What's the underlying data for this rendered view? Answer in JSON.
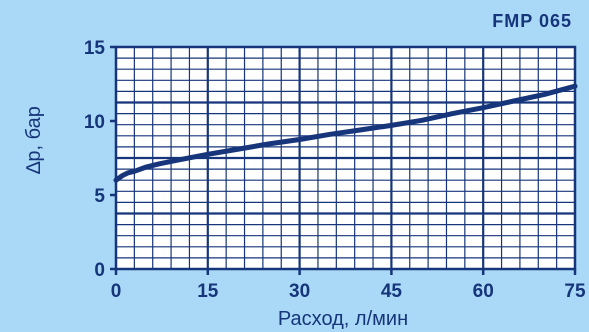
{
  "chart_data": {
    "type": "line",
    "title": "FMP 065",
    "xlabel": "Расход, л/мин",
    "ylabel": "∆р, бар",
    "xlim": [
      0,
      75
    ],
    "ylim": [
      0,
      15
    ],
    "x_ticks": [
      "0",
      "15",
      "30",
      "45",
      "60",
      "75"
    ],
    "y_ticks": [
      "0",
      "5",
      "10",
      "15"
    ],
    "grid": true,
    "series": [
      {
        "x": [
          0,
          1,
          2,
          3,
          5,
          7,
          10,
          15,
          20,
          25,
          30,
          35,
          40,
          45,
          50,
          55,
          60,
          65,
          70,
          75
        ],
        "y": [
          6.0,
          6.3,
          6.5,
          6.6,
          6.9,
          7.1,
          7.35,
          7.75,
          8.1,
          8.45,
          8.75,
          9.1,
          9.4,
          9.7,
          10.05,
          10.5,
          10.9,
          11.35,
          11.8,
          12.35
        ]
      }
    ],
    "colors": {
      "background": "#a9d9f7",
      "plot_background": "#ffffff",
      "grid": "#16357a",
      "line": "#16357a",
      "text": "#16357a"
    }
  }
}
